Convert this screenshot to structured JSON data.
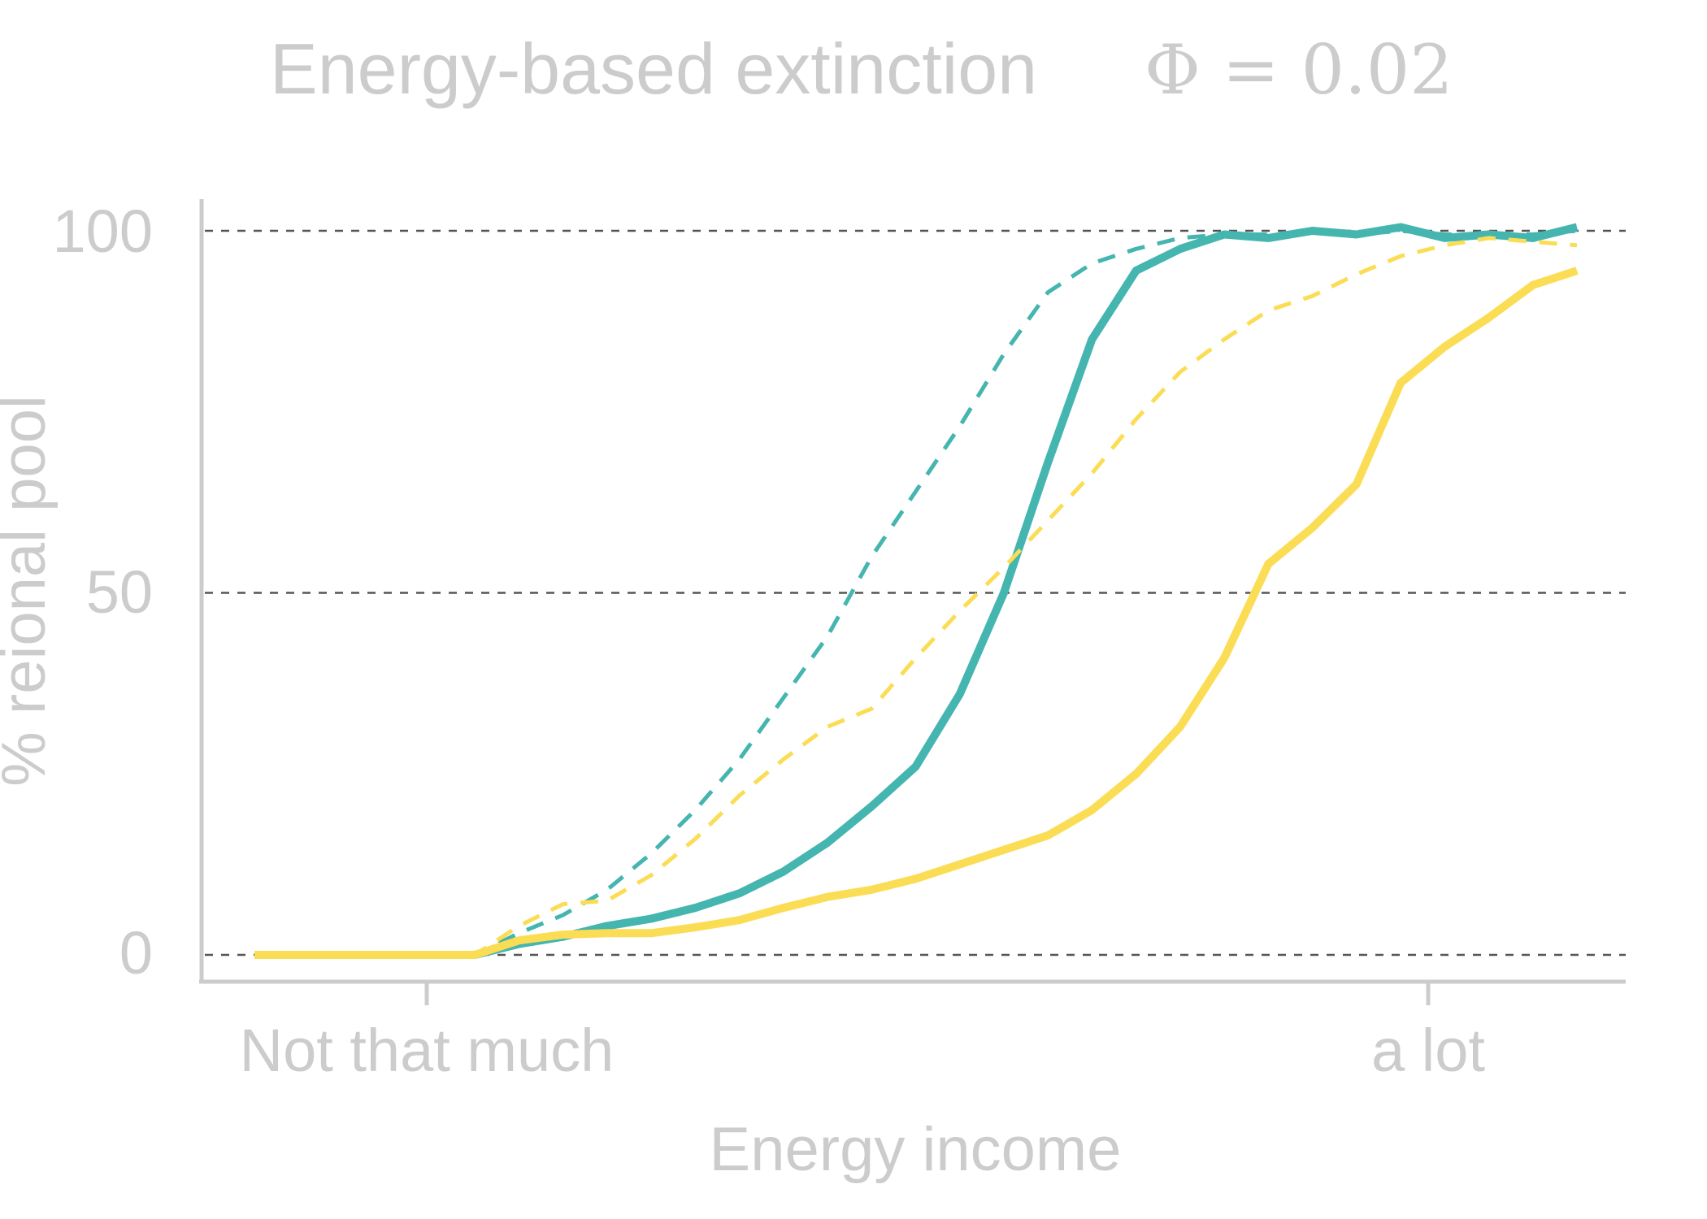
{
  "chart_data": {
    "type": "line",
    "title": "Energy-based extinction",
    "subtitle": "Φ = 0.02",
    "xlabel": "Energy income",
    "ylabel": "% reional pool",
    "ylim": [
      0,
      100
    ],
    "y_ticks": [
      0,
      50,
      100
    ],
    "x_tick_labels": [
      "Not that much",
      "a lot"
    ],
    "grid": "horizontal dashed at 0, 50, 100",
    "legend": "none",
    "colors": {
      "teal": "#45b5b0",
      "yellow": "#fbdd55",
      "grid": "#555555",
      "axis": "#cccccc",
      "text": "#cccccc"
    },
    "x": [
      0,
      1,
      2,
      3,
      4,
      5,
      6,
      7,
      8,
      9,
      10,
      11,
      12,
      13,
      14,
      15,
      16,
      17,
      18,
      19,
      20,
      21,
      22,
      23,
      24,
      25,
      26,
      27,
      28,
      29,
      30
    ],
    "series": [
      {
        "style": "solid",
        "color": "#45b5b0",
        "values": [
          0,
          0,
          0,
          0,
          0,
          0,
          1.5,
          2.5,
          4,
          5,
          6.5,
          8.5,
          11.5,
          15.5,
          20.5,
          26,
          36,
          50,
          68,
          85,
          94.5,
          97.5,
          99.5,
          99,
          100,
          99.5,
          100.5,
          99,
          99.5,
          99,
          100.5
        ]
      },
      {
        "style": "dashed",
        "color": "#45b5b0",
        "values": [
          0,
          0,
          0,
          0,
          0,
          0,
          3,
          5.5,
          9,
          14,
          20,
          27,
          35.5,
          44,
          55,
          64,
          73,
          83,
          91.5,
          95.5,
          97.5,
          99,
          99.5,
          99.5,
          100,
          99.5,
          100,
          99.5,
          99.5,
          99.5,
          100
        ]
      },
      {
        "style": "solid",
        "color": "#fbdd55",
        "values": [
          0,
          0,
          0,
          0,
          0,
          0,
          2,
          2.8,
          3,
          3,
          3.8,
          4.8,
          6.5,
          8,
          9,
          10.5,
          12.5,
          14.5,
          16.5,
          20,
          25,
          31.5,
          41,
          54,
          59,
          65,
          79,
          84,
          88,
          92.5,
          94.5
        ]
      },
      {
        "style": "dashed",
        "color": "#fbdd55",
        "values": [
          0,
          0,
          0,
          0,
          0,
          0,
          4,
          7,
          7.5,
          11,
          16,
          22,
          27,
          31.5,
          34,
          41,
          47.5,
          53.5,
          60,
          66.5,
          74,
          80.5,
          85,
          89,
          91,
          94,
          96.5,
          98,
          99,
          98.5,
          98
        ]
      }
    ]
  }
}
